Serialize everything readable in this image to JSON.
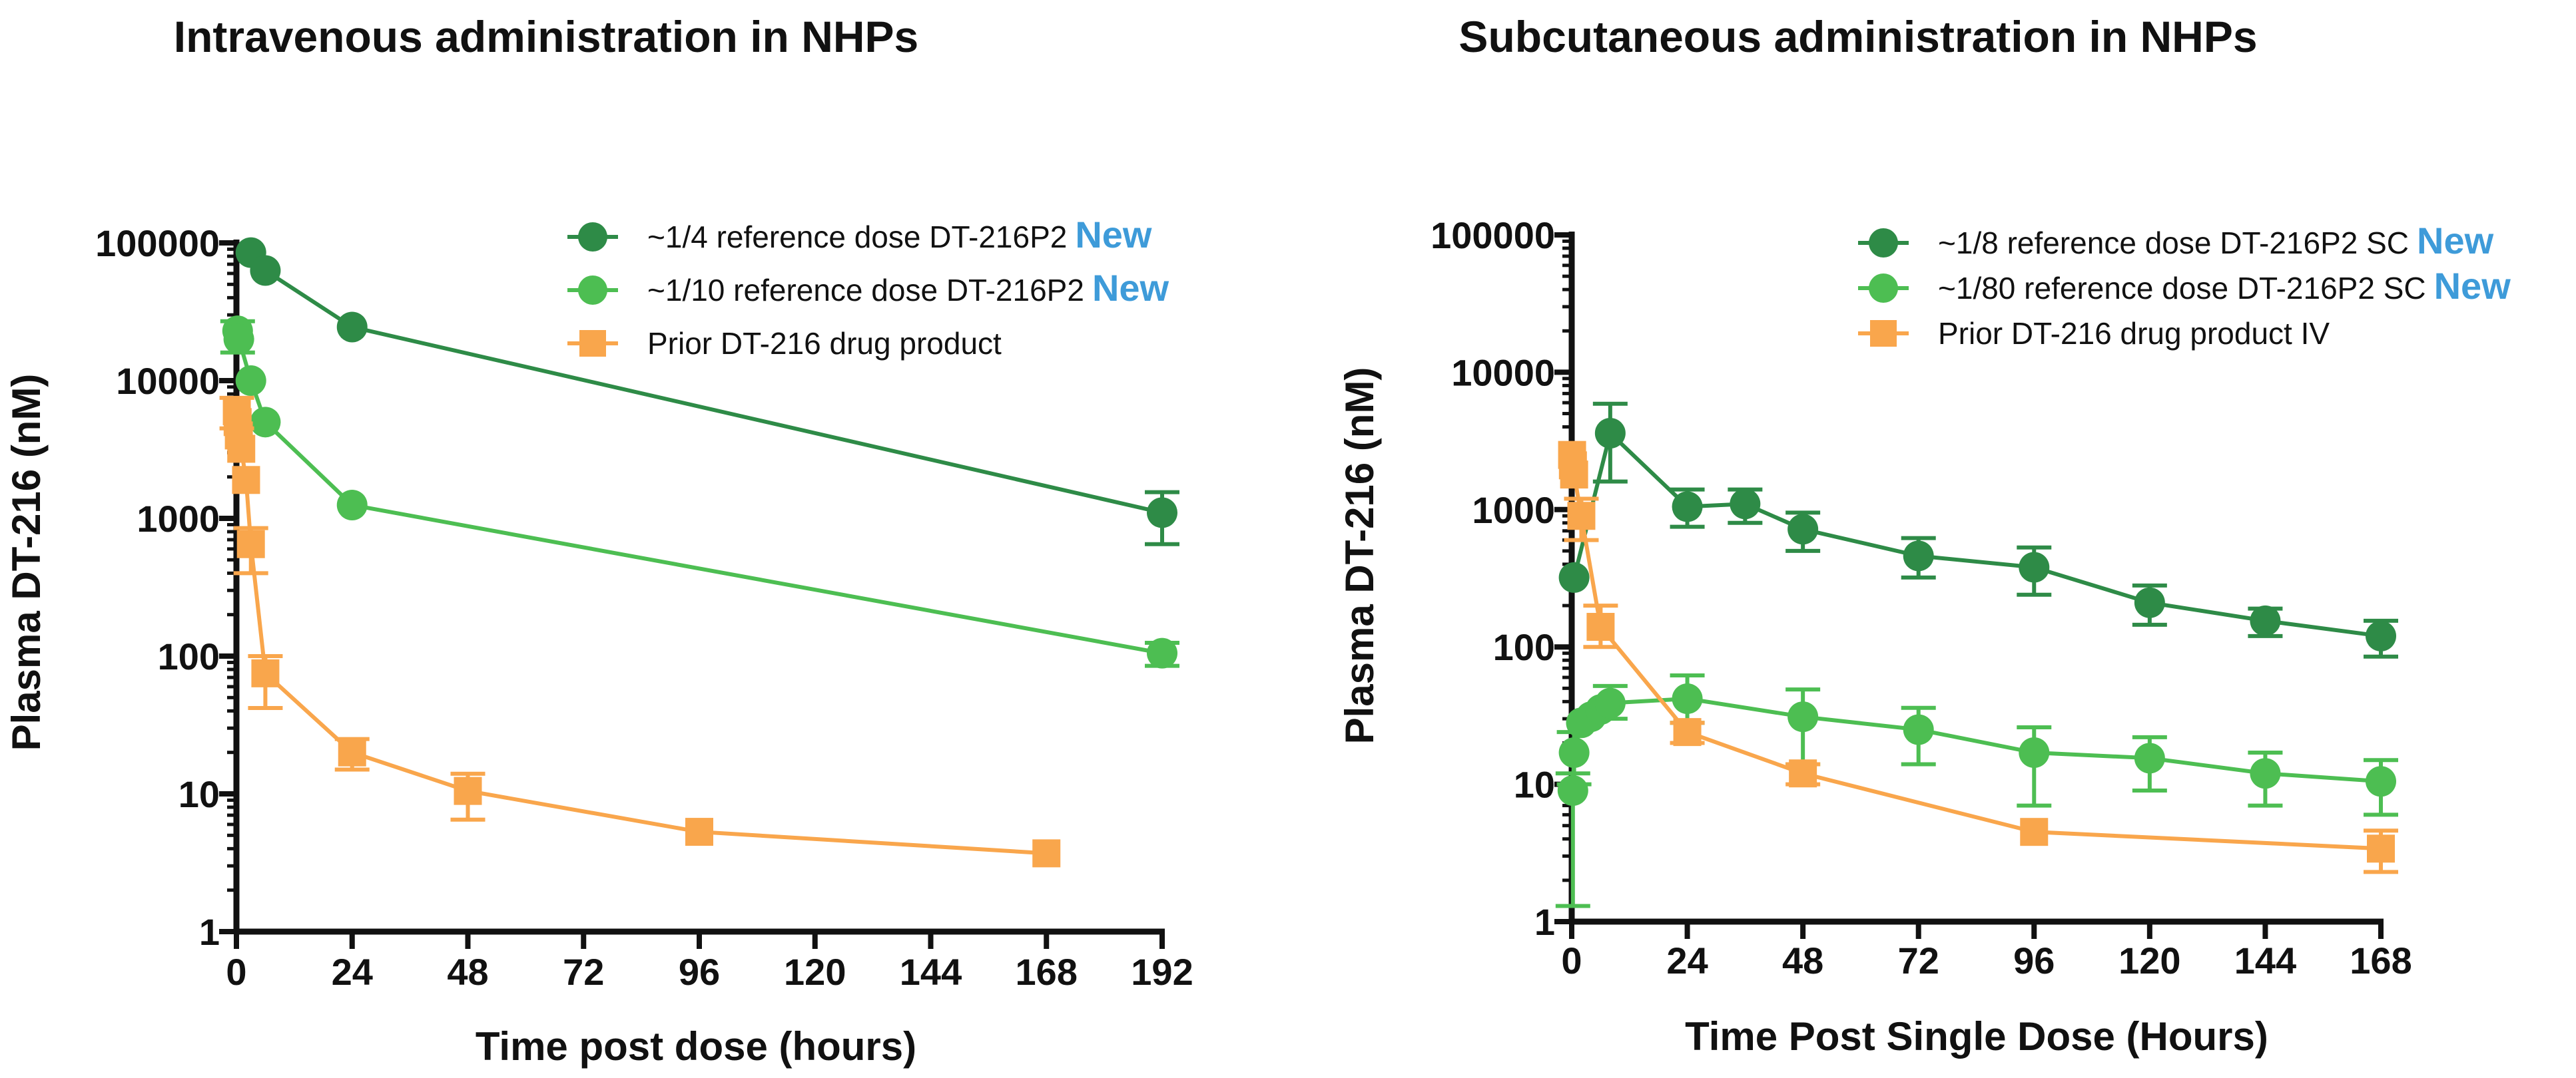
{
  "colors": {
    "dark_green": "#2E8B47",
    "light_green": "#4DBE52",
    "orange": "#F9A64C",
    "new_blue": "#3E9BD9",
    "axis": "#111111"
  },
  "new_label": "New",
  "chart_data": [
    {
      "type": "line",
      "title": "Intravenous administration in NHPs",
      "xlabel": "Time post dose (hours)",
      "ylabel": "Plasma DT-216 (nM)",
      "yscale": "log",
      "ylim": [
        1,
        100000
      ],
      "xlim": [
        0,
        192
      ],
      "xticks": [
        0,
        24,
        48,
        72,
        96,
        120,
        144,
        168,
        192
      ],
      "yticks": [
        1,
        10,
        100,
        1000,
        10000,
        100000
      ],
      "ytick_labels": [
        "1",
        "10",
        "100",
        "1000",
        "10000",
        "100000"
      ],
      "legend_position": "top-right",
      "series": [
        {
          "name": "~1/4 reference dose DT-216P2",
          "is_new": true,
          "color_key": "dark_green",
          "marker": "circle",
          "x": [
            3,
            6,
            24,
            192
          ],
          "y": [
            85000,
            63000,
            24500,
            1100
          ],
          "err_low": [
            null,
            null,
            null,
            650
          ],
          "err_high": [
            null,
            null,
            null,
            1550
          ]
        },
        {
          "name": "~1/10 reference dose DT-216P2",
          "is_new": true,
          "color_key": "light_green",
          "marker": "circle",
          "x": [
            0.25,
            0.5,
            3,
            6,
            24,
            192
          ],
          "y": [
            23000,
            20000,
            10000,
            5000,
            1250,
            105
          ],
          "err_low": [
            16000,
            null,
            null,
            null,
            null,
            85
          ],
          "err_high": [
            27000,
            null,
            null,
            null,
            null,
            125
          ]
        },
        {
          "name": "Prior DT-216 drug product",
          "is_new": false,
          "color_key": "orange",
          "marker": "square",
          "x": [
            0.08,
            0.25,
            0.5,
            1,
            2,
            3,
            6,
            24,
            48,
            96,
            168
          ],
          "y": [
            6000,
            5000,
            4000,
            3200,
            1900,
            650,
            75,
            20,
            10.5,
            5.3,
            3.7
          ],
          "err_low": [
            4500,
            null,
            null,
            null,
            null,
            400,
            42,
            15,
            6.5,
            null,
            null
          ],
          "err_high": [
            7500,
            null,
            null,
            null,
            null,
            850,
            100,
            25,
            14,
            null,
            null
          ]
        }
      ]
    },
    {
      "type": "line",
      "title": "Subcutaneous administration in NHPs",
      "xlabel": "Time Post Single Dose (Hours)",
      "ylabel": "Plasma DT-216 (nM)",
      "yscale": "log",
      "ylim": [
        1,
        100000
      ],
      "xlim": [
        0,
        168
      ],
      "xticks": [
        0,
        24,
        48,
        72,
        96,
        120,
        144,
        168
      ],
      "yticks": [
        1,
        10,
        100,
        1000,
        10000,
        100000
      ],
      "ytick_labels": [
        "1",
        "10",
        "100",
        "1000",
        "10000",
        "100000"
      ],
      "legend_position": "top-right",
      "series": [
        {
          "name": "~1/8 reference dose DT-216P2 SC",
          "is_new": true,
          "color_key": "dark_green",
          "marker": "circle",
          "x": [
            0.5,
            8,
            24,
            36,
            48,
            72,
            96,
            120,
            144,
            168
          ],
          "y": [
            320,
            3600,
            1050,
            1100,
            720,
            460,
            380,
            210,
            155,
            120
          ],
          "err_low": [
            null,
            1600,
            750,
            800,
            500,
            320,
            240,
            145,
            120,
            85
          ],
          "err_high": [
            null,
            5900,
            1400,
            1400,
            950,
            620,
            530,
            280,
            190,
            155
          ]
        },
        {
          "name": "~1/80 reference dose DT-216P2 SC",
          "is_new": true,
          "color_key": "light_green",
          "marker": "circle",
          "x": [
            0.25,
            0.5,
            2,
            4,
            6,
            8,
            24,
            48,
            72,
            96,
            120,
            144,
            168
          ],
          "y": [
            9,
            17,
            28,
            31,
            35,
            39,
            42,
            31,
            25,
            17,
            15.5,
            12,
            10.5
          ],
          "err_low": [
            1.3,
            10,
            null,
            null,
            null,
            30,
            28,
            14,
            14,
            7,
            9,
            7,
            6
          ],
          "err_high": [
            12,
            24,
            null,
            null,
            null,
            52,
            62,
            49,
            36,
            26,
            22,
            17,
            15
          ]
        },
        {
          "name": "Prior DT-216 drug product IV",
          "is_new": false,
          "color_key": "orange",
          "marker": "square",
          "x": [
            0.08,
            0.25,
            0.5,
            2,
            6,
            24,
            48,
            96,
            168
          ],
          "y": [
            2500,
            2100,
            1800,
            900,
            140,
            24,
            12,
            4.5,
            3.4
          ],
          "err_low": [
            null,
            null,
            null,
            600,
            100,
            20,
            10,
            null,
            2.3
          ],
          "err_high": [
            null,
            null,
            null,
            1200,
            200,
            28,
            14,
            null,
            4.6
          ]
        }
      ]
    }
  ]
}
